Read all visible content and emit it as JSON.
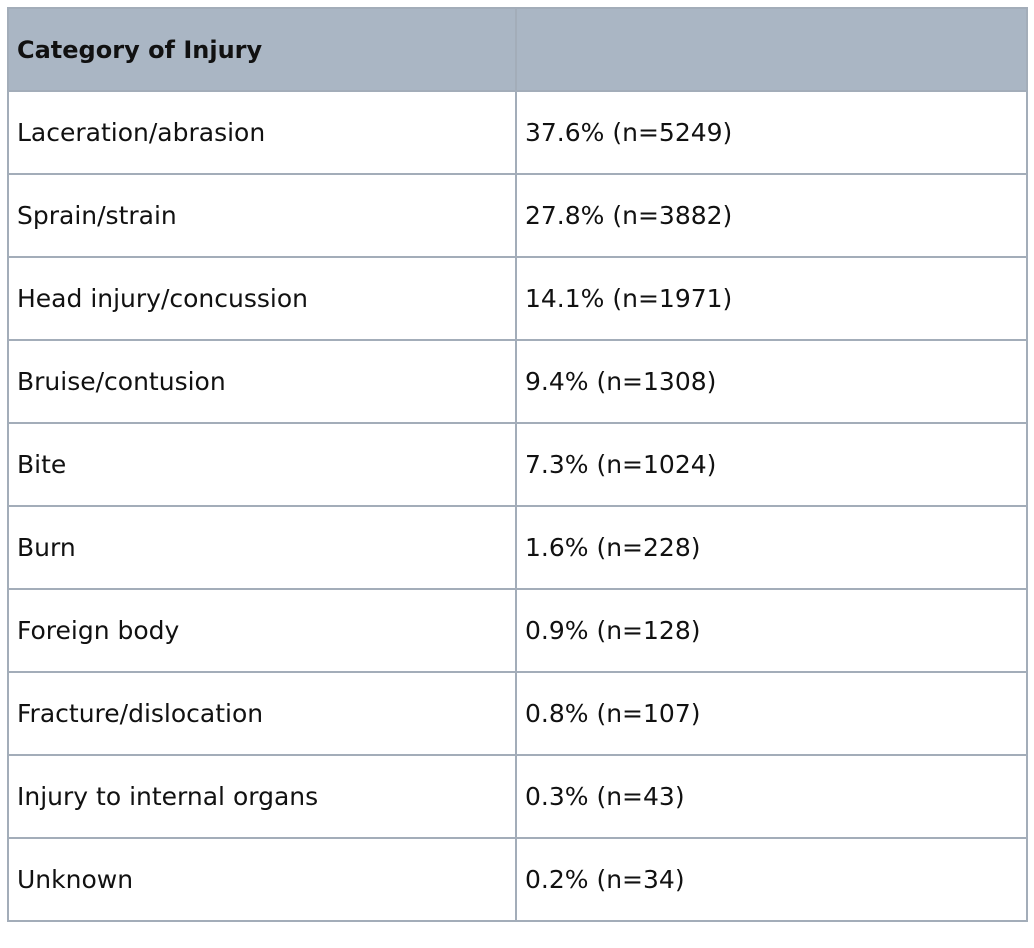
{
  "table": {
    "headers": [
      "Category of Injury",
      ""
    ],
    "rows": [
      [
        "Laceration/abrasion",
        "37.6% (n=5249)"
      ],
      [
        "Sprain/strain",
        "27.8% (n=3882)"
      ],
      [
        "Head injury/concussion",
        "14.1% (n=1971)"
      ],
      [
        "Bruise/contusion",
        "9.4% (n=1308)"
      ],
      [
        "Bite",
        "7.3% (n=1024)"
      ],
      [
        "Burn",
        "1.6% (n=228)"
      ],
      [
        "Foreign body",
        "0.9% (n=128)"
      ],
      [
        "Fracture/dislocation",
        "0.8% (n=107)"
      ],
      [
        "Injury to internal organs",
        "0.3% (n=43)"
      ],
      [
        "Unknown",
        "0.2% (n=34)"
      ]
    ]
  },
  "colors": {
    "header_background": "#aab6c4",
    "border": "#a3adb9",
    "text": "#111111"
  }
}
